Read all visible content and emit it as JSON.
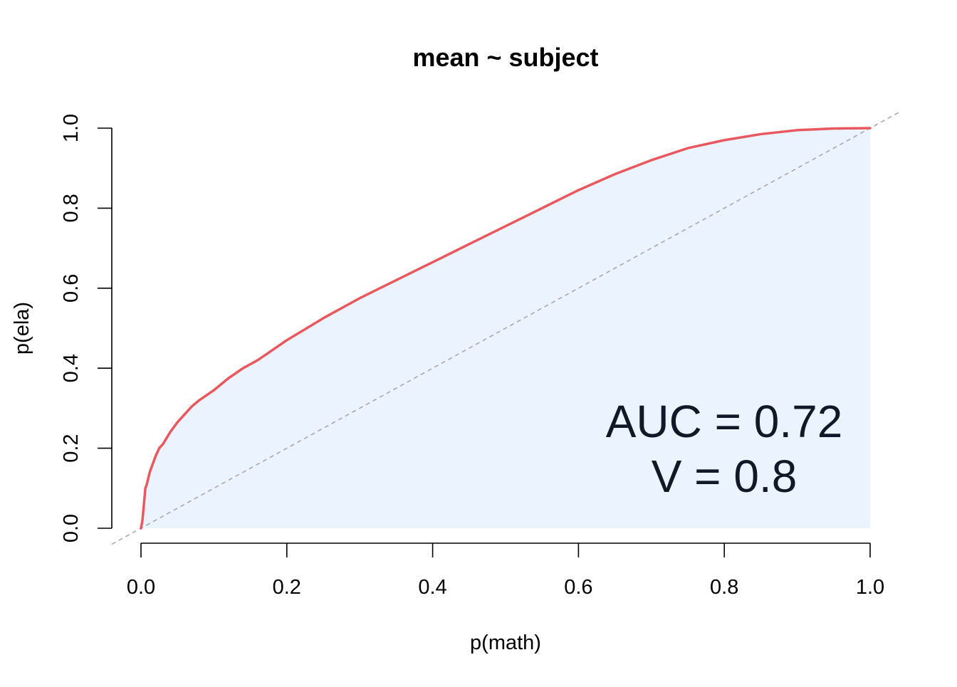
{
  "chart_data": {
    "type": "line",
    "title": "mean ~ subject",
    "xlabel": "p(math)",
    "ylabel": "p(ela)",
    "xlim": [
      0,
      1
    ],
    "ylim": [
      0,
      1
    ],
    "xticks": [
      "0.0",
      "0.2",
      "0.4",
      "0.6",
      "0.8",
      "1.0"
    ],
    "yticks": [
      "0.0",
      "0.2",
      "0.4",
      "0.6",
      "0.8",
      "1.0"
    ],
    "grid": false,
    "series": [
      {
        "color": "#e8585f",
        "fill": "#ebf3fe",
        "x": [
          0,
          0.002,
          0.004,
          0.006,
          0.008,
          0.012,
          0.016,
          0.02,
          0.025,
          0.03,
          0.035,
          0.04,
          0.05,
          0.06,
          0.07,
          0.08,
          0.1,
          0.12,
          0.14,
          0.16,
          0.18,
          0.2,
          0.25,
          0.3,
          0.35,
          0.4,
          0.45,
          0.5,
          0.55,
          0.6,
          0.65,
          0.7,
          0.75,
          0.8,
          0.85,
          0.9,
          0.95,
          1.0
        ],
        "y": [
          0,
          0.02,
          0.06,
          0.1,
          0.11,
          0.14,
          0.16,
          0.18,
          0.2,
          0.21,
          0.225,
          0.24,
          0.265,
          0.285,
          0.305,
          0.32,
          0.345,
          0.375,
          0.4,
          0.42,
          0.445,
          0.47,
          0.525,
          0.575,
          0.62,
          0.665,
          0.71,
          0.755,
          0.8,
          0.845,
          0.885,
          0.92,
          0.95,
          0.97,
          0.985,
          0.995,
          0.999,
          1.0
        ]
      }
    ],
    "reference_line": {
      "type": "diagonal",
      "style": "dashed",
      "color": "#a8a9ad"
    },
    "annotations": [
      "AUC = 0.72",
      "V = 0.8"
    ]
  }
}
